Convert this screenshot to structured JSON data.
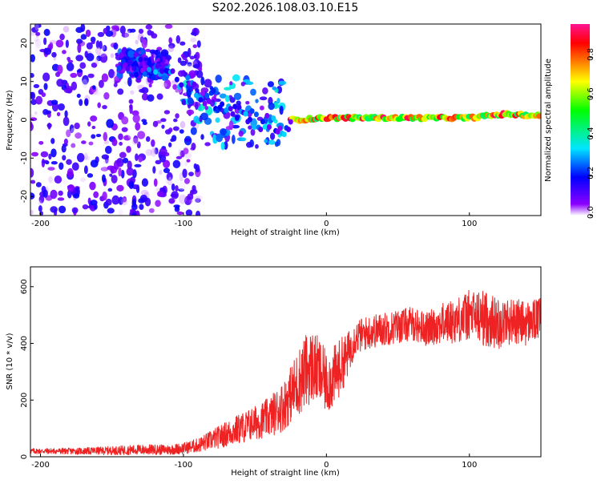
{
  "title": "S202.2026.108.03.10.E15",
  "colors": {
    "snr_line": "#ee2222",
    "scatter": "#8a2be2",
    "axes": "#000000"
  },
  "colorbar": {
    "label": "Normalized spectral amplitude",
    "ticks": [
      "0.0",
      "0.2",
      "0.4",
      "0.6",
      "0.8"
    ],
    "range": [
      0,
      0.97
    ],
    "colormap": [
      "#ffffff",
      "#8b00ff",
      "#0000ff",
      "#00e5ff",
      "#00ff00",
      "#ffff00",
      "#ff8000",
      "#ff0000",
      "#ff1493"
    ]
  },
  "chart_data": [
    {
      "type": "heatmap",
      "title": "S202.2026.108.03.10.E15",
      "xlabel": "Height of straight line (km)",
      "ylabel": "Frequency (Hz)",
      "xlim": [
        -207,
        150
      ],
      "ylim": [
        -25,
        25
      ],
      "x_ticks": [
        -200,
        -100,
        0,
        100
      ],
      "y_ticks": [
        -20,
        -10,
        0,
        10,
        20
      ],
      "x_tick_labels": [
        "-200",
        "-100",
        "0",
        "100"
      ],
      "y_tick_labels": [
        "-20",
        "-10",
        "0",
        "10",
        "20"
      ],
      "grid": false,
      "regions": [
        {
          "x_range": [
            -207,
            -88
          ],
          "y_range": [
            -25,
            25
          ],
          "amplitude_range": [
            0.0,
            0.2
          ],
          "desc": "noise"
        },
        {
          "x_range": [
            -145,
            -110
          ],
          "y_range": [
            11,
            18
          ],
          "amplitude_range": [
            0.05,
            0.3
          ]
        },
        {
          "x_range": [
            -100,
            -30
          ],
          "y_range": [
            -7,
            11
          ],
          "amplitude_range": [
            0.05,
            0.4
          ]
        },
        {
          "x_range": [
            -25,
            150
          ],
          "y_range": [
            -1,
            3
          ],
          "amplitude_range": [
            0.3,
            0.97
          ]
        }
      ],
      "ridge": {
        "x": [
          -140,
          -120,
          -100,
          -85,
          -70,
          -55,
          -40,
          -30,
          -25,
          -20,
          0,
          50,
          100,
          125,
          150
        ],
        "y": [
          15,
          13,
          10,
          6,
          4,
          1,
          -1,
          -3,
          0,
          0,
          0.5,
          0.5,
          0.5,
          1.5,
          1
        ]
      }
    },
    {
      "type": "line",
      "xlabel": "Height of straight line (km)",
      "ylabel": "SNR (10 * v/v)",
      "xlim": [
        -207,
        150
      ],
      "ylim": [
        0,
        670
      ],
      "x_ticks": [
        -200,
        -100,
        0,
        100
      ],
      "y_ticks": [
        0,
        200,
        400,
        600
      ],
      "x_tick_labels": [
        "-200",
        "-100",
        "0",
        "100"
      ],
      "y_tick_labels": [
        "0",
        "200",
        "400",
        "600"
      ],
      "grid": false,
      "series": [
        {
          "x": [
            -207,
            -190,
            -170,
            -150,
            -130,
            -110,
            -100,
            -90,
            -80,
            -70,
            -60,
            -50,
            -40,
            -30,
            -25,
            -20,
            -15,
            -10,
            -5,
            0,
            5,
            10,
            15,
            20,
            30,
            40,
            50,
            60,
            70,
            80,
            90,
            100,
            110,
            120,
            130,
            140,
            150
          ],
          "y": [
            20,
            20,
            20,
            22,
            25,
            25,
            30,
            40,
            60,
            80,
            100,
            120,
            140,
            180,
            220,
            260,
            300,
            320,
            300,
            260,
            280,
            320,
            360,
            420,
            440,
            450,
            460,
            470,
            450,
            470,
            480,
            500,
            490,
            470,
            480,
            470,
            490
          ],
          "spread": [
            10,
            10,
            12,
            15,
            18,
            18,
            20,
            25,
            35,
            45,
            55,
            60,
            70,
            90,
            100,
            120,
            130,
            130,
            120,
            110,
            110,
            100,
            80,
            60,
            60,
            60,
            60,
            60,
            60,
            70,
            80,
            90,
            100,
            90,
            80,
            80,
            70
          ]
        }
      ]
    }
  ]
}
